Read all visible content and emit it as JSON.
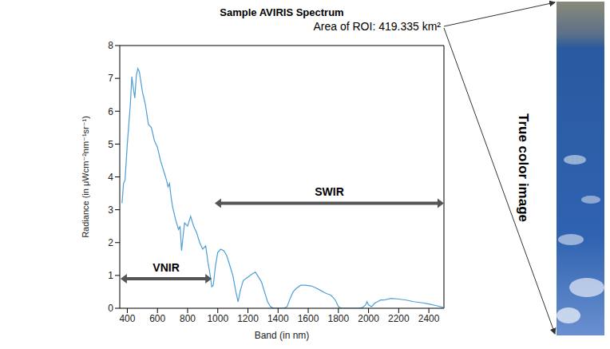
{
  "chart_data": {
    "type": "line",
    "title": "Sample AVIRIS Spectrum",
    "x_label": "Band (in nm)",
    "y_label": "Radiance (in μWcm⁻²nm⁻¹sr⁻¹)",
    "x": [
      365,
      375,
      385,
      400,
      420,
      430,
      440,
      450,
      460,
      470,
      480,
      500,
      520,
      540,
      560,
      580,
      600,
      620,
      640,
      660,
      670,
      680,
      690,
      700,
      720,
      740,
      750,
      760,
      770,
      780,
      800,
      820,
      840,
      860,
      880,
      900,
      920,
      935,
      950,
      960,
      970,
      985,
      1000,
      1020,
      1040,
      1060,
      1080,
      1100,
      1120,
      1135,
      1150,
      1170,
      1200,
      1230,
      1250,
      1270,
      1290,
      1310,
      1330,
      1350,
      1370,
      1400,
      1420,
      1440,
      1460,
      1480,
      1500,
      1520,
      1550,
      1580,
      1620,
      1650,
      1680,
      1700,
      1720,
      1750,
      1780,
      1800,
      1820,
      1850,
      1880,
      1900,
      1940,
      1960,
      1980,
      1990,
      2000,
      2020,
      2040,
      2060,
      2080,
      2100,
      2150,
      2200,
      2250,
      2300,
      2350,
      2400,
      2450,
      2500
    ],
    "values": [
      3.2,
      3.8,
      3.9,
      5.0,
      6.2,
      7.05,
      6.7,
      6.4,
      7.1,
      7.3,
      7.2,
      6.6,
      6.2,
      5.6,
      5.5,
      5.1,
      4.9,
      4.5,
      4.2,
      3.9,
      3.7,
      3.8,
      3.4,
      3.1,
      2.7,
      2.4,
      2.5,
      1.75,
      2.2,
      2.6,
      2.5,
      2.8,
      2.5,
      2.3,
      2.0,
      1.8,
      1.9,
      1.4,
      1.0,
      0.65,
      0.7,
      1.3,
      1.7,
      1.8,
      1.75,
      1.6,
      1.3,
      1.0,
      0.5,
      0.2,
      0.55,
      0.85,
      0.95,
      1.05,
      1.1,
      0.95,
      0.8,
      0.5,
      0.2,
      0.05,
      0,
      0,
      0,
      0,
      0.05,
      0.3,
      0.5,
      0.6,
      0.7,
      0.7,
      0.68,
      0.62,
      0.55,
      0.5,
      0.45,
      0.4,
      0.25,
      0.05,
      0,
      0,
      0,
      0,
      0,
      0.02,
      0.1,
      0.2,
      0.1,
      0.05,
      0.15,
      0.2,
      0.25,
      0.25,
      0.3,
      0.28,
      0.25,
      0.2,
      0.17,
      0.13,
      0.08,
      0.02
    ],
    "color": "#4d9fd6",
    "xlim": [
      350,
      2500
    ],
    "xticks": [
      400,
      600,
      800,
      1000,
      1200,
      1400,
      1600,
      1800,
      2000,
      2200,
      2400
    ],
    "ylim": [
      0,
      8
    ],
    "yticks": [
      0,
      1,
      2,
      3,
      4,
      5,
      6,
      7,
      8
    ],
    "grid": false,
    "annotations": [
      {
        "text": "VNIR",
        "x": [
          355,
          960
        ],
        "y": 0.9
      },
      {
        "text": "SWIR",
        "x": [
          980,
          2500
        ],
        "y": 3.2
      },
      {
        "text": "Area of ROI: 419.335 km²"
      }
    ]
  },
  "image": {
    "title": "True color image"
  }
}
